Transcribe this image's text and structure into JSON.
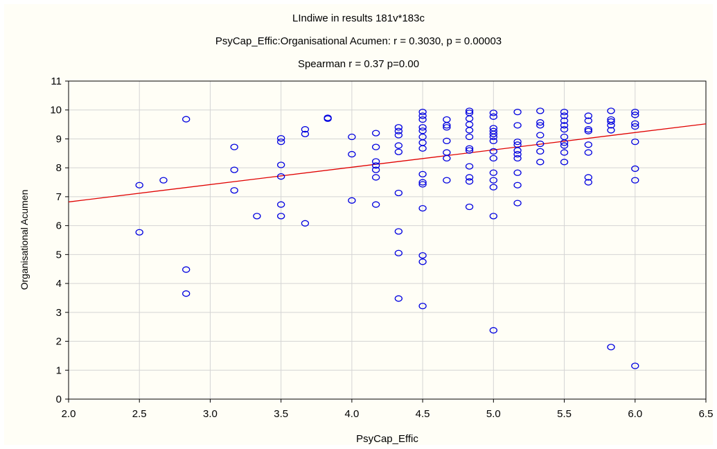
{
  "chart_data": {
    "type": "scatter",
    "title": "LIndiwe in results 181v*183c",
    "subtitle": "PsyCap_Effic:Organisational Acumen:   r = 0.3030, p = 0.00003",
    "annotation": "Spearman r = 0.37 p=0.00",
    "xlabel": "PsyCap_Effic",
    "ylabel": "Organisational Acumen",
    "xlim": [
      2.0,
      6.5
    ],
    "ylim": [
      0,
      11
    ],
    "xticks": [
      "2.0",
      "2.5",
      "3.0",
      "3.5",
      "4.0",
      "4.5",
      "5.0",
      "5.5",
      "6.0",
      "6.5"
    ],
    "yticks": [
      "0",
      "1",
      "2",
      "3",
      "4",
      "5",
      "6",
      "7",
      "8",
      "9",
      "10",
      "11"
    ],
    "grid": true,
    "marker_color": "#0000e0",
    "fit_line_color": "#e00000",
    "fit_line": {
      "x": [
        2.0,
        6.5
      ],
      "y": [
        6.82,
        9.52
      ]
    },
    "points": [
      [
        2.5,
        7.4
      ],
      [
        2.5,
        5.77
      ],
      [
        2.67,
        7.57
      ],
      [
        2.83,
        9.68
      ],
      [
        2.83,
        4.48
      ],
      [
        2.83,
        3.65
      ],
      [
        3.17,
        8.72
      ],
      [
        3.17,
        7.93
      ],
      [
        3.17,
        7.22
      ],
      [
        3.33,
        6.33
      ],
      [
        3.5,
        9.02
      ],
      [
        3.5,
        8.9
      ],
      [
        3.5,
        8.1
      ],
      [
        3.5,
        7.7
      ],
      [
        3.5,
        6.73
      ],
      [
        3.5,
        6.33
      ],
      [
        3.67,
        9.33
      ],
      [
        3.67,
        9.17
      ],
      [
        3.67,
        6.08
      ],
      [
        3.83,
        9.73
      ],
      [
        3.83,
        9.7
      ],
      [
        4.0,
        9.07
      ],
      [
        4.0,
        8.47
      ],
      [
        4.0,
        6.87
      ],
      [
        4.17,
        9.2
      ],
      [
        4.17,
        8.72
      ],
      [
        4.17,
        8.22
      ],
      [
        4.17,
        8.08
      ],
      [
        4.17,
        7.93
      ],
      [
        4.17,
        7.67
      ],
      [
        4.17,
        6.73
      ],
      [
        4.33,
        9.4
      ],
      [
        4.33,
        9.27
      ],
      [
        4.33,
        9.13
      ],
      [
        4.33,
        8.77
      ],
      [
        4.33,
        8.55
      ],
      [
        4.33,
        7.13
      ],
      [
        4.33,
        5.8
      ],
      [
        4.33,
        5.05
      ],
      [
        4.33,
        3.48
      ],
      [
        4.5,
        9.93
      ],
      [
        4.5,
        9.8
      ],
      [
        4.5,
        9.67
      ],
      [
        4.5,
        9.4
      ],
      [
        4.5,
        9.28
      ],
      [
        4.5,
        9.07
      ],
      [
        4.5,
        8.87
      ],
      [
        4.5,
        8.67
      ],
      [
        4.5,
        7.78
      ],
      [
        4.5,
        7.5
      ],
      [
        4.5,
        7.43
      ],
      [
        4.5,
        6.6
      ],
      [
        4.5,
        4.97
      ],
      [
        4.5,
        4.75
      ],
      [
        4.5,
        3.22
      ],
      [
        4.67,
        9.67
      ],
      [
        4.67,
        9.47
      ],
      [
        4.67,
        9.4
      ],
      [
        4.67,
        8.93
      ],
      [
        4.67,
        8.53
      ],
      [
        4.67,
        8.33
      ],
      [
        4.67,
        7.57
      ],
      [
        4.83,
        9.97
      ],
      [
        4.83,
        9.9
      ],
      [
        4.83,
        9.7
      ],
      [
        4.83,
        9.5
      ],
      [
        4.83,
        9.3
      ],
      [
        4.83,
        9.07
      ],
      [
        4.83,
        8.67
      ],
      [
        4.83,
        8.6
      ],
      [
        4.83,
        8.05
      ],
      [
        4.83,
        7.67
      ],
      [
        4.83,
        7.53
      ],
      [
        4.83,
        6.65
      ],
      [
        5.0,
        9.9
      ],
      [
        5.0,
        9.77
      ],
      [
        5.0,
        9.37
      ],
      [
        5.0,
        9.27
      ],
      [
        5.0,
        9.17
      ],
      [
        5.0,
        9.07
      ],
      [
        5.0,
        8.93
      ],
      [
        5.0,
        8.57
      ],
      [
        5.0,
        8.33
      ],
      [
        5.0,
        7.83
      ],
      [
        5.0,
        7.57
      ],
      [
        5.0,
        7.33
      ],
      [
        5.0,
        6.33
      ],
      [
        5.0,
        2.38
      ],
      [
        5.17,
        9.93
      ],
      [
        5.17,
        9.47
      ],
      [
        5.17,
        8.9
      ],
      [
        5.17,
        8.8
      ],
      [
        5.17,
        8.6
      ],
      [
        5.17,
        8.47
      ],
      [
        5.17,
        8.33
      ],
      [
        5.17,
        7.83
      ],
      [
        5.17,
        7.4
      ],
      [
        5.17,
        6.78
      ],
      [
        5.33,
        9.97
      ],
      [
        5.33,
        9.57
      ],
      [
        5.33,
        9.47
      ],
      [
        5.33,
        9.13
      ],
      [
        5.33,
        8.83
      ],
      [
        5.33,
        8.57
      ],
      [
        5.33,
        8.2
      ],
      [
        5.5,
        9.93
      ],
      [
        5.5,
        9.8
      ],
      [
        5.5,
        9.63
      ],
      [
        5.5,
        9.47
      ],
      [
        5.5,
        9.33
      ],
      [
        5.5,
        9.07
      ],
      [
        5.5,
        8.87
      ],
      [
        5.5,
        8.77
      ],
      [
        5.5,
        8.53
      ],
      [
        5.5,
        8.2
      ],
      [
        5.67,
        9.8
      ],
      [
        5.67,
        9.63
      ],
      [
        5.67,
        9.33
      ],
      [
        5.67,
        9.27
      ],
      [
        5.67,
        8.8
      ],
      [
        5.67,
        8.53
      ],
      [
        5.67,
        7.67
      ],
      [
        5.67,
        7.5
      ],
      [
        5.83,
        9.97
      ],
      [
        5.83,
        9.67
      ],
      [
        5.83,
        9.6
      ],
      [
        5.83,
        9.47
      ],
      [
        5.83,
        9.3
      ],
      [
        5.83,
        1.8
      ],
      [
        6.0,
        9.93
      ],
      [
        6.0,
        9.83
      ],
      [
        6.0,
        9.53
      ],
      [
        6.0,
        9.43
      ],
      [
        6.0,
        8.9
      ],
      [
        6.0,
        7.97
      ],
      [
        6.0,
        7.57
      ],
      [
        6.0,
        1.15
      ]
    ]
  }
}
